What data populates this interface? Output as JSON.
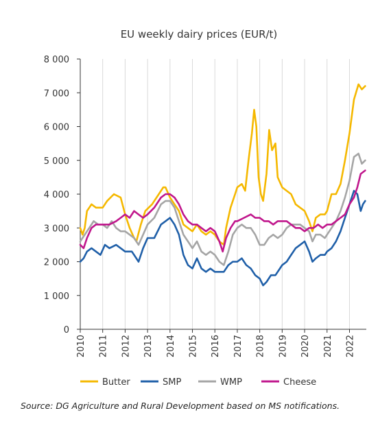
{
  "chart_data": {
    "type": "line",
    "title": "EU weekly dairy prices (EUR/t)",
    "xlabel": "",
    "ylabel": "",
    "xlim": [
      2010,
      2022.75
    ],
    "ylim": [
      0,
      8000
    ],
    "y_ticks": [
      0,
      1000,
      2000,
      3000,
      4000,
      5000,
      6000,
      7000,
      8000
    ],
    "y_tick_labels": [
      "0",
      "1 000",
      "2 000",
      "3 000",
      "4 000",
      "5 000",
      "6 000",
      "7 000",
      "8 000"
    ],
    "x_ticks": [
      2010,
      2011,
      2012,
      2013,
      2014,
      2015,
      2016,
      2017,
      2018,
      2019,
      2020,
      2021,
      2022
    ],
    "x_tick_labels": [
      "2010",
      "2011",
      "2012",
      "2013",
      "2014",
      "2015",
      "2016",
      "2017",
      "2018",
      "2019",
      "2020",
      "2021",
      "2022"
    ],
    "grid": "vertical-only",
    "legend_position": "bottom",
    "series": [
      {
        "name": "Butter",
        "color": "#f5b800",
        "points": [
          [
            2010.0,
            3000
          ],
          [
            2010.1,
            2800
          ],
          [
            2010.2,
            3000
          ],
          [
            2010.3,
            3500
          ],
          [
            2010.5,
            3700
          ],
          [
            2010.7,
            3600
          ],
          [
            2011.0,
            3600
          ],
          [
            2011.2,
            3800
          ],
          [
            2011.5,
            4000
          ],
          [
            2011.8,
            3900
          ],
          [
            2012.0,
            3400
          ],
          [
            2012.2,
            3000
          ],
          [
            2012.4,
            2700
          ],
          [
            2012.5,
            2600
          ],
          [
            2012.7,
            3100
          ],
          [
            2012.9,
            3500
          ],
          [
            2013.2,
            3700
          ],
          [
            2013.5,
            4000
          ],
          [
            2013.7,
            4200
          ],
          [
            2013.8,
            4200
          ],
          [
            2014.0,
            3900
          ],
          [
            2014.2,
            3700
          ],
          [
            2014.4,
            3500
          ],
          [
            2014.6,
            3100
          ],
          [
            2014.8,
            3000
          ],
          [
            2015.0,
            2900
          ],
          [
            2015.2,
            3100
          ],
          [
            2015.4,
            2900
          ],
          [
            2015.6,
            2800
          ],
          [
            2015.8,
            2900
          ],
          [
            2016.0,
            2800
          ],
          [
            2016.2,
            2600
          ],
          [
            2016.4,
            2500
          ],
          [
            2016.5,
            3000
          ],
          [
            2016.7,
            3600
          ],
          [
            2016.9,
            4000
          ],
          [
            2017.0,
            4200
          ],
          [
            2017.2,
            4300
          ],
          [
            2017.35,
            4100
          ],
          [
            2017.5,
            5000
          ],
          [
            2017.65,
            5800
          ],
          [
            2017.75,
            6500
          ],
          [
            2017.85,
            6000
          ],
          [
            2017.95,
            4500
          ],
          [
            2018.05,
            4000
          ],
          [
            2018.15,
            3800
          ],
          [
            2018.3,
            4600
          ],
          [
            2018.42,
            5900
          ],
          [
            2018.55,
            5300
          ],
          [
            2018.7,
            5500
          ],
          [
            2018.8,
            4500
          ],
          [
            2019.0,
            4200
          ],
          [
            2019.2,
            4100
          ],
          [
            2019.4,
            4000
          ],
          [
            2019.6,
            3700
          ],
          [
            2019.8,
            3600
          ],
          [
            2020.0,
            3500
          ],
          [
            2020.2,
            3200
          ],
          [
            2020.35,
            2900
          ],
          [
            2020.5,
            3300
          ],
          [
            2020.7,
            3400
          ],
          [
            2020.9,
            3400
          ],
          [
            2021.0,
            3500
          ],
          [
            2021.2,
            4000
          ],
          [
            2021.4,
            4000
          ],
          [
            2021.6,
            4300
          ],
          [
            2021.8,
            5000
          ],
          [
            2022.0,
            5800
          ],
          [
            2022.2,
            6800
          ],
          [
            2022.4,
            7250
          ],
          [
            2022.55,
            7100
          ],
          [
            2022.7,
            7200
          ]
        ]
      },
      {
        "name": "SMP",
        "color": "#1f5fa8",
        "points": [
          [
            2010.0,
            2000
          ],
          [
            2010.15,
            2100
          ],
          [
            2010.3,
            2300
          ],
          [
            2010.5,
            2400
          ],
          [
            2010.7,
            2300
          ],
          [
            2010.9,
            2200
          ],
          [
            2011.1,
            2500
          ],
          [
            2011.3,
            2400
          ],
          [
            2011.6,
            2500
          ],
          [
            2011.8,
            2400
          ],
          [
            2012.0,
            2300
          ],
          [
            2012.3,
            2300
          ],
          [
            2012.5,
            2100
          ],
          [
            2012.6,
            2000
          ],
          [
            2012.8,
            2400
          ],
          [
            2013.0,
            2700
          ],
          [
            2013.3,
            2700
          ],
          [
            2013.6,
            3100
          ],
          [
            2013.8,
            3200
          ],
          [
            2014.0,
            3300
          ],
          [
            2014.2,
            3100
          ],
          [
            2014.4,
            2800
          ],
          [
            2014.6,
            2200
          ],
          [
            2014.8,
            1900
          ],
          [
            2015.0,
            1800
          ],
          [
            2015.2,
            2100
          ],
          [
            2015.4,
            1800
          ],
          [
            2015.6,
            1700
          ],
          [
            2015.8,
            1800
          ],
          [
            2016.0,
            1700
          ],
          [
            2016.2,
            1700
          ],
          [
            2016.4,
            1700
          ],
          [
            2016.6,
            1900
          ],
          [
            2016.8,
            2000
          ],
          [
            2017.0,
            2000
          ],
          [
            2017.2,
            2100
          ],
          [
            2017.4,
            1900
          ],
          [
            2017.6,
            1800
          ],
          [
            2017.8,
            1600
          ],
          [
            2018.0,
            1500
          ],
          [
            2018.15,
            1300
          ],
          [
            2018.3,
            1400
          ],
          [
            2018.5,
            1600
          ],
          [
            2018.7,
            1600
          ],
          [
            2018.9,
            1800
          ],
          [
            2019.0,
            1900
          ],
          [
            2019.2,
            2000
          ],
          [
            2019.4,
            2200
          ],
          [
            2019.6,
            2400
          ],
          [
            2019.8,
            2500
          ],
          [
            2020.0,
            2600
          ],
          [
            2020.2,
            2300
          ],
          [
            2020.35,
            2000
          ],
          [
            2020.5,
            2100
          ],
          [
            2020.7,
            2200
          ],
          [
            2020.9,
            2200
          ],
          [
            2021.0,
            2300
          ],
          [
            2021.2,
            2400
          ],
          [
            2021.4,
            2600
          ],
          [
            2021.6,
            2900
          ],
          [
            2021.8,
            3300
          ],
          [
            2022.0,
            3700
          ],
          [
            2022.2,
            4100
          ],
          [
            2022.35,
            4000
          ],
          [
            2022.5,
            3500
          ],
          [
            2022.6,
            3700
          ],
          [
            2022.7,
            3800
          ]
        ]
      },
      {
        "name": "WMP",
        "color": "#a5a5a5",
        "points": [
          [
            2010.0,
            2600
          ],
          [
            2010.2,
            2800
          ],
          [
            2010.4,
            3000
          ],
          [
            2010.6,
            3200
          ],
          [
            2010.8,
            3100
          ],
          [
            2011.0,
            3100
          ],
          [
            2011.2,
            3000
          ],
          [
            2011.4,
            3200
          ],
          [
            2011.6,
            3000
          ],
          [
            2011.8,
            2900
          ],
          [
            2012.0,
            2900
          ],
          [
            2012.2,
            2800
          ],
          [
            2012.4,
            2700
          ],
          [
            2012.6,
            2500
          ],
          [
            2012.8,
            2800
          ],
          [
            2013.0,
            3100
          ],
          [
            2013.3,
            3300
          ],
          [
            2013.6,
            3700
          ],
          [
            2013.8,
            3800
          ],
          [
            2014.0,
            3800
          ],
          [
            2014.2,
            3600
          ],
          [
            2014.4,
            3200
          ],
          [
            2014.6,
            2800
          ],
          [
            2014.8,
            2600
          ],
          [
            2015.0,
            2400
          ],
          [
            2015.2,
            2600
          ],
          [
            2015.4,
            2300
          ],
          [
            2015.6,
            2200
          ],
          [
            2015.8,
            2300
          ],
          [
            2016.0,
            2200
          ],
          [
            2016.2,
            2000
          ],
          [
            2016.4,
            1900
          ],
          [
            2016.6,
            2300
          ],
          [
            2016.8,
            2800
          ],
          [
            2017.0,
            3000
          ],
          [
            2017.2,
            3100
          ],
          [
            2017.4,
            3000
          ],
          [
            2017.6,
            3000
          ],
          [
            2017.8,
            2800
          ],
          [
            2018.0,
            2500
          ],
          [
            2018.2,
            2500
          ],
          [
            2018.4,
            2700
          ],
          [
            2018.6,
            2800
          ],
          [
            2018.8,
            2700
          ],
          [
            2019.0,
            2800
          ],
          [
            2019.2,
            3000
          ],
          [
            2019.4,
            3100
          ],
          [
            2019.6,
            3100
          ],
          [
            2019.8,
            3100
          ],
          [
            2020.0,
            3000
          ],
          [
            2020.2,
            2900
          ],
          [
            2020.35,
            2600
          ],
          [
            2020.5,
            2800
          ],
          [
            2020.7,
            2800
          ],
          [
            2020.9,
            2700
          ],
          [
            2021.0,
            2800
          ],
          [
            2021.2,
            3000
          ],
          [
            2021.4,
            3200
          ],
          [
            2021.6,
            3500
          ],
          [
            2021.8,
            3900
          ],
          [
            2022.0,
            4400
          ],
          [
            2022.2,
            5100
          ],
          [
            2022.4,
            5200
          ],
          [
            2022.55,
            4900
          ],
          [
            2022.7,
            5000
          ]
        ]
      },
      {
        "name": "Cheese",
        "color": "#c0168c",
        "points": [
          [
            2010.0,
            2500
          ],
          [
            2010.15,
            2400
          ],
          [
            2010.3,
            2700
          ],
          [
            2010.5,
            3000
          ],
          [
            2010.7,
            3100
          ],
          [
            2011.0,
            3100
          ],
          [
            2011.3,
            3100
          ],
          [
            2011.6,
            3200
          ],
          [
            2011.8,
            3300
          ],
          [
            2012.0,
            3400
          ],
          [
            2012.2,
            3300
          ],
          [
            2012.4,
            3500
          ],
          [
            2012.6,
            3400
          ],
          [
            2012.8,
            3300
          ],
          [
            2013.0,
            3400
          ],
          [
            2013.3,
            3600
          ],
          [
            2013.6,
            3900
          ],
          [
            2013.8,
            4000
          ],
          [
            2014.0,
            4000
          ],
          [
            2014.2,
            3900
          ],
          [
            2014.4,
            3700
          ],
          [
            2014.6,
            3400
          ],
          [
            2014.8,
            3200
          ],
          [
            2015.0,
            3100
          ],
          [
            2015.2,
            3100
          ],
          [
            2015.4,
            3000
          ],
          [
            2015.6,
            2900
          ],
          [
            2015.8,
            3000
          ],
          [
            2016.0,
            2900
          ],
          [
            2016.2,
            2600
          ],
          [
            2016.35,
            2300
          ],
          [
            2016.5,
            2700
          ],
          [
            2016.7,
            3000
          ],
          [
            2016.9,
            3200
          ],
          [
            2017.0,
            3200
          ],
          [
            2017.3,
            3300
          ],
          [
            2017.6,
            3400
          ],
          [
            2017.8,
            3300
          ],
          [
            2018.0,
            3300
          ],
          [
            2018.2,
            3200
          ],
          [
            2018.4,
            3200
          ],
          [
            2018.6,
            3100
          ],
          [
            2018.8,
            3200
          ],
          [
            2019.0,
            3200
          ],
          [
            2019.2,
            3200
          ],
          [
            2019.4,
            3100
          ],
          [
            2019.6,
            3000
          ],
          [
            2019.8,
            3000
          ],
          [
            2020.0,
            2900
          ],
          [
            2020.2,
            3000
          ],
          [
            2020.4,
            3000
          ],
          [
            2020.6,
            3100
          ],
          [
            2020.8,
            3000
          ],
          [
            2021.0,
            3100
          ],
          [
            2021.2,
            3100
          ],
          [
            2021.4,
            3200
          ],
          [
            2021.6,
            3300
          ],
          [
            2021.8,
            3400
          ],
          [
            2022.0,
            3700
          ],
          [
            2022.2,
            3900
          ],
          [
            2022.35,
            4200
          ],
          [
            2022.5,
            4600
          ],
          [
            2022.7,
            4700
          ]
        ]
      }
    ]
  },
  "source_note": "Source: DG Agriculture and Rural Development based on MS notifications."
}
